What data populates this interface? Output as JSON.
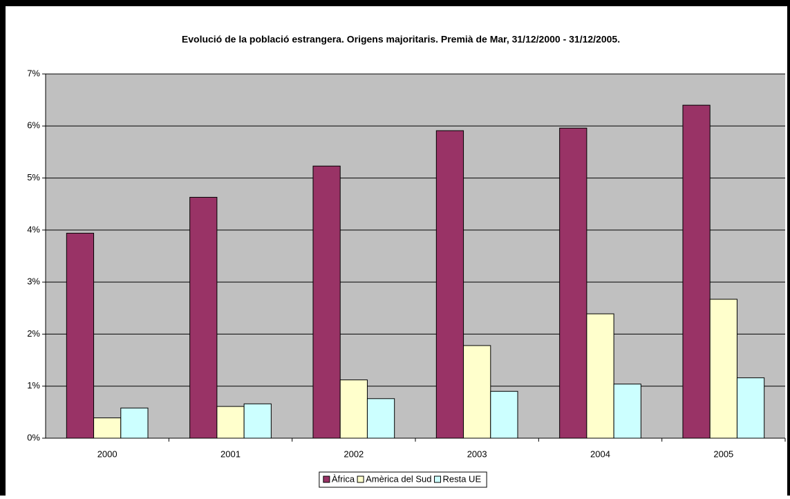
{
  "chart_data": {
    "type": "bar",
    "title": "Evolució de la població estrangera. Origens majoritaris. Premià de Mar, 31/12/2000 - 31/12/2005.",
    "categories": [
      "2000",
      "2001",
      "2002",
      "2003",
      "2004",
      "2005"
    ],
    "series": [
      {
        "name": "Àfrica",
        "color": "#993366",
        "values": [
          3.94,
          4.63,
          5.23,
          5.91,
          5.96,
          6.4
        ]
      },
      {
        "name": "Amèrica del Sud",
        "color": "#ffffcc",
        "values": [
          0.39,
          0.61,
          1.12,
          1.78,
          2.39,
          2.67
        ]
      },
      {
        "name": "Resta UE",
        "color": "#ccffff",
        "values": [
          0.58,
          0.66,
          0.76,
          0.9,
          1.04,
          1.16
        ]
      }
    ],
    "ylim": [
      0,
      7
    ],
    "yticks": [
      {
        "value": 0,
        "label": "0%"
      },
      {
        "value": 1,
        "label": "1%"
      },
      {
        "value": 2,
        "label": "2%"
      },
      {
        "value": 3,
        "label": "3%"
      },
      {
        "value": 4,
        "label": "4%"
      },
      {
        "value": 5,
        "label": "5%"
      },
      {
        "value": 6,
        "label": "6%"
      },
      {
        "value": 7,
        "label": "7%"
      }
    ],
    "grid": true,
    "legend": "bottom"
  }
}
